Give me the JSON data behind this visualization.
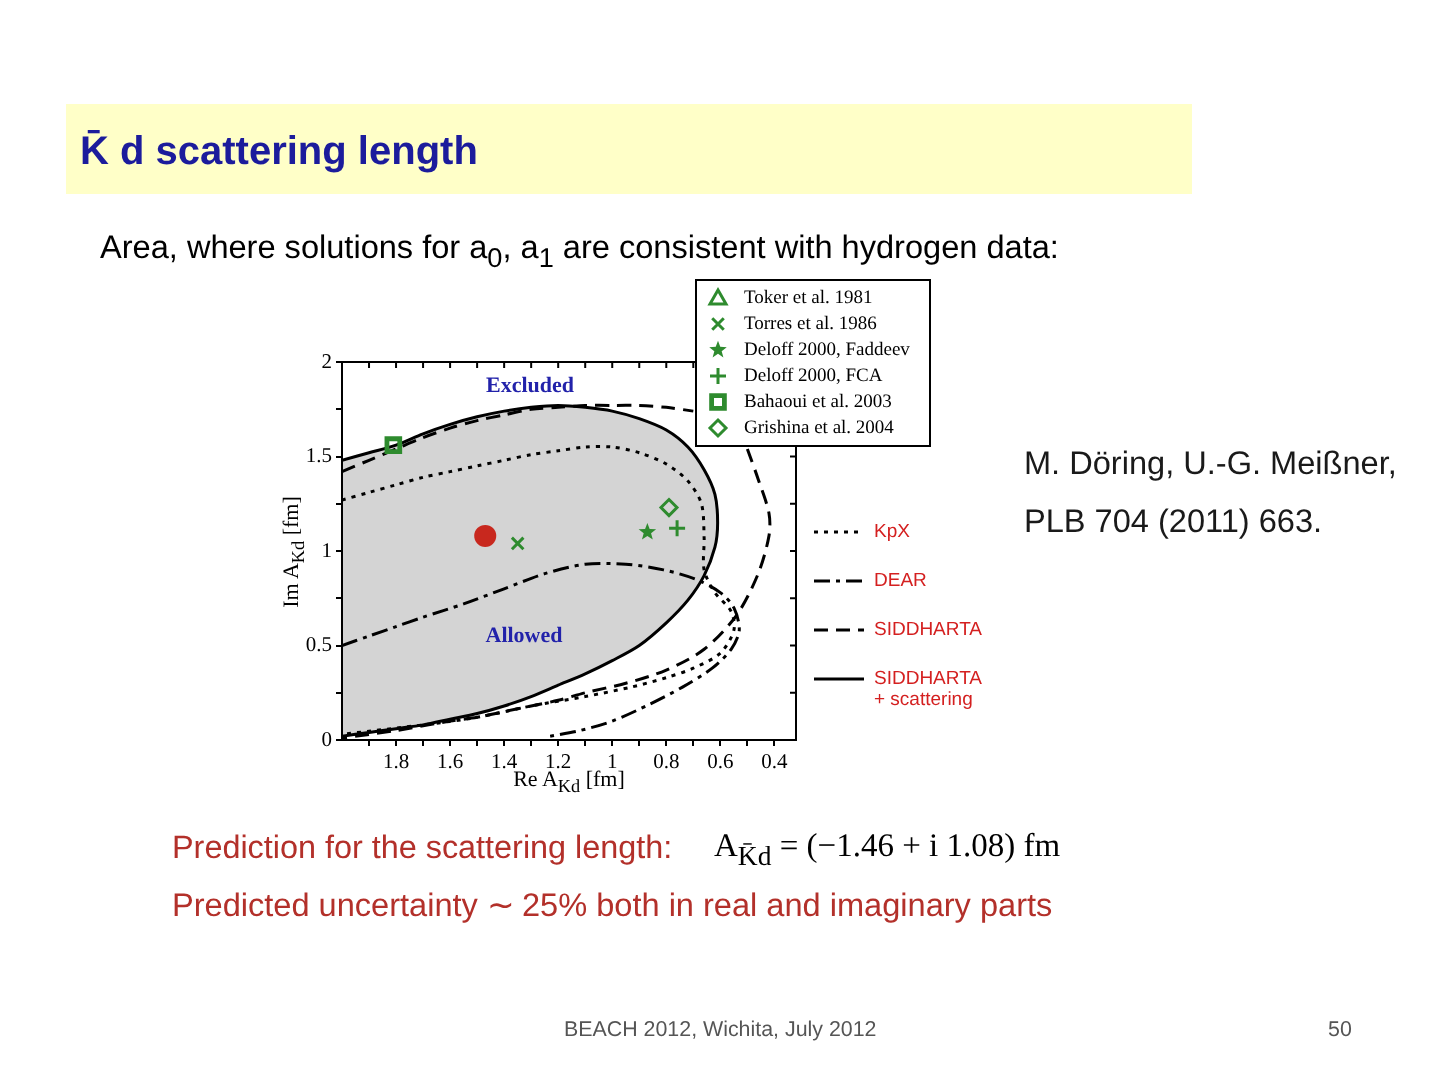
{
  "chart_data": {
    "type": "line",
    "title": "K̄ d scattering length",
    "subtitle": "Area, where solutions for a$_{0}$, a$_{1}$ are consistent with hydrogen data:",
    "xlabel": "Re A$_{Kd}$ [fm]",
    "ylabel": "Im A$_{Kd}$ [fm]",
    "xlim": [
      2.0,
      0.32
    ],
    "ylim": [
      0,
      2
    ],
    "xticks": [
      {
        "value": 1.9,
        "label": null
      },
      1.8,
      {
        "value": 1.7,
        "label": null
      },
      1.6,
      {
        "value": 1.5,
        "label": null
      },
      1.4,
      {
        "value": 1.3,
        "label": null
      },
      1.2,
      {
        "value": 1.1,
        "label": null
      },
      1,
      {
        "value": 0.9,
        "label": null
      },
      0.8,
      {
        "value": 0.7,
        "label": null
      },
      0.6,
      {
        "value": 0.5,
        "label": null
      },
      0.4
    ],
    "yticks": [
      0,
      {
        "value": 0.25,
        "label": null
      },
      0.5,
      {
        "value": 0.75,
        "label": null
      },
      1,
      {
        "value": 1.25,
        "label": null
      },
      1.5,
      {
        "value": 1.75,
        "label": null
      },
      2
    ],
    "legend": "top right",
    "series": [
      {
        "name": "KpX",
        "color": "#000000",
        "line_style": "dotted",
        "x": [
          2.0,
          1.9,
          1.8,
          1.7,
          1.6,
          1.5,
          1.4,
          1.3,
          1.2,
          1.1,
          1.0,
          0.9,
          0.8,
          0.72,
          0.67,
          0.66,
          0.66,
          0.62,
          0.56,
          0.55,
          0.6,
          0.7,
          0.8,
          0.93,
          1.1,
          1.3,
          1.5,
          1.7,
          2.0
        ],
        "values": [
          1.27,
          1.31,
          1.35,
          1.39,
          1.42,
          1.45,
          1.48,
          1.51,
          1.53,
          1.55,
          1.55,
          1.52,
          1.46,
          1.37,
          1.25,
          1.07,
          0.9,
          0.78,
          0.68,
          0.58,
          0.46,
          0.38,
          0.33,
          0.28,
          0.23,
          0.18,
          0.12,
          0.08,
          0.03
        ]
      },
      {
        "name": "DEAR",
        "color": "#000000",
        "line_style": "dashdot",
        "x": [
          2.0,
          1.9,
          1.8,
          1.7,
          1.55,
          1.4,
          1.25,
          1.1,
          0.95,
          0.81,
          0.69,
          0.6,
          0.55,
          0.53,
          0.56,
          0.63,
          0.74,
          0.86,
          1.0,
          1.12,
          1.23
        ],
        "values": [
          0.5,
          0.55,
          0.6,
          0.65,
          0.72,
          0.8,
          0.88,
          0.93,
          0.93,
          0.9,
          0.85,
          0.78,
          0.7,
          0.58,
          0.48,
          0.38,
          0.28,
          0.19,
          0.1,
          0.05,
          0.02
        ]
      },
      {
        "name": "SIDDHARTA",
        "color": "#000000",
        "line_style": "dashed",
        "x": [
          2.0,
          1.9,
          1.8,
          1.7,
          1.6,
          1.5,
          1.4,
          1.3,
          1.2,
          1.1,
          1.0,
          0.9,
          0.8,
          0.7,
          0.6,
          0.5,
          0.46,
          0.42,
          0.42,
          0.46,
          0.54,
          0.66,
          0.8,
          0.95,
          1.1,
          1.2,
          1.3,
          1.4,
          1.5,
          1.6,
          1.8,
          2.0
        ],
        "values": [
          1.42,
          1.48,
          1.54,
          1.6,
          1.65,
          1.69,
          1.72,
          1.75,
          1.76,
          1.77,
          1.77,
          1.77,
          1.76,
          1.74,
          null,
          1.54,
          1.38,
          1.2,
          1.08,
          0.88,
          0.66,
          0.48,
          0.37,
          0.3,
          0.25,
          0.21,
          0.18,
          0.15,
          0.12,
          0.1,
          0.05,
          0.01
        ]
      },
      {
        "name": "SIDDHARTA + scattering",
        "type": "area",
        "color": "#000000",
        "line_style": "solid",
        "x": [
          2.0,
          1.9,
          1.8,
          1.7,
          1.6,
          1.5,
          1.4,
          1.3,
          1.2,
          1.1,
          1.0,
          0.9,
          0.8,
          0.72,
          0.66,
          0.62,
          0.61,
          0.62,
          0.66,
          0.72,
          0.8,
          0.9,
          1.0,
          1.1,
          1.2,
          1.3,
          1.4,
          1.5,
          1.6,
          1.7,
          1.8,
          1.9,
          2.0
        ],
        "values": [
          1.48,
          1.52,
          1.56,
          1.62,
          1.67,
          1.71,
          1.74,
          1.76,
          1.77,
          1.76,
          1.74,
          1.7,
          1.64,
          1.55,
          1.43,
          1.3,
          1.15,
          1.02,
          0.87,
          0.74,
          0.62,
          0.5,
          0.42,
          0.35,
          0.29,
          0.23,
          0.18,
          0.14,
          0.11,
          0.08,
          0.06,
          0.04,
          0.02
        ]
      },
      {
        "type": "scatter",
        "color": "#c8281e",
        "marker": "circle",
        "x": [
          1.47
        ],
        "values": [
          1.08
        ]
      },
      {
        "name": "Toker et al. 1981",
        "type": "scatter",
        "color": "#2e8b2e",
        "marker": "triangle"
      },
      {
        "name": "Torres et al. 1986",
        "type": "scatter",
        "color": "#2e8b2e",
        "marker": "x",
        "x": [
          1.35
        ],
        "values": [
          1.04
        ]
      },
      {
        "name": "Deloff 2000, Faddeev",
        "type": "scatter",
        "color": "#2e8b2e",
        "marker": "star",
        "x": [
          0.87
        ],
        "values": [
          1.1
        ]
      },
      {
        "name": "Deloff 2000, FCA",
        "type": "scatter",
        "color": "#2e8b2e",
        "marker": "cross",
        "x": [
          0.76
        ],
        "values": [
          1.12
        ]
      },
      {
        "name": "Bahaoui et al. 2003",
        "type": "scatter",
        "color": "#2e8b2e",
        "marker": "square",
        "x": [
          1.81
        ],
        "values": [
          1.56
        ]
      },
      {
        "name": "Grishina et al. 2004",
        "type": "scatter",
        "color": "#2e8b2e",
        "marker": "diamond",
        "x": [
          0.79
        ],
        "values": [
          1.23
        ]
      }
    ],
    "annotations": [
      "M. Döring, U.-G. Meißner, PLB 704 (2011) 663.",
      "Prediction for the scattering length:",
      "A$_{K̄d}$ = (−1.46 + i 1.08) fm",
      "Predicted uncertainty ∼ 25% both in real and imaginary parts",
      "BEACH 2012, Wichita, July 2012",
      "50",
      "Excluded",
      "Allowed"
    ]
  }
}
